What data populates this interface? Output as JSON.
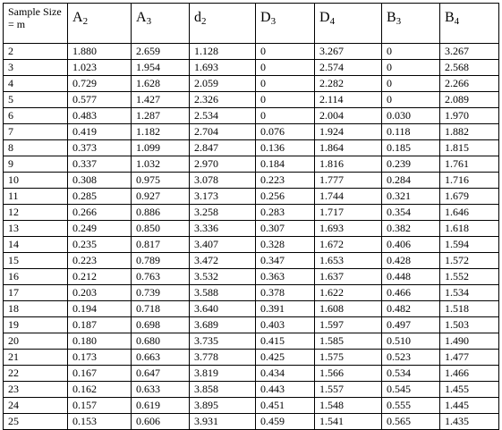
{
  "table": {
    "header": {
      "sample_size": "Sample Size = m",
      "columns": [
        {
          "base": "A",
          "sub": "2"
        },
        {
          "base": "A",
          "sub": "3"
        },
        {
          "base": "d",
          "sub": "2"
        },
        {
          "base": "D",
          "sub": "3"
        },
        {
          "base": "D",
          "sub": "4"
        },
        {
          "base": "B",
          "sub": "3"
        },
        {
          "base": "B",
          "sub": "4"
        }
      ]
    },
    "rows": [
      [
        "2",
        "1.880",
        "2.659",
        "1.128",
        "0",
        "3.267",
        "0",
        "3.267"
      ],
      [
        "3",
        "1.023",
        "1.954",
        "1.693",
        "0",
        "2.574",
        "0",
        "2.568"
      ],
      [
        "4",
        "0.729",
        "1.628",
        "2.059",
        "0",
        "2.282",
        "0",
        "2.266"
      ],
      [
        "5",
        "0.577",
        "1.427",
        "2.326",
        "0",
        "2.114",
        "0",
        "2.089"
      ],
      [
        "6",
        "0.483",
        "1.287",
        "2.534",
        "0",
        "2.004",
        "0.030",
        "1.970"
      ],
      [
        "7",
        "0.419",
        "1.182",
        "2.704",
        "0.076",
        "1.924",
        "0.118",
        "1.882"
      ],
      [
        "8",
        "0.373",
        "1.099",
        "2.847",
        "0.136",
        "1.864",
        "0.185",
        "1.815"
      ],
      [
        "9",
        "0.337",
        "1.032",
        "2.970",
        "0.184",
        "1.816",
        "0.239",
        "1.761"
      ],
      [
        "10",
        "0.308",
        "0.975",
        "3.078",
        "0.223",
        "1.777",
        "0.284",
        "1.716"
      ],
      [
        "11",
        "0.285",
        "0.927",
        "3.173",
        "0.256",
        "1.744",
        "0.321",
        "1.679"
      ],
      [
        "12",
        "0.266",
        "0.886",
        "3.258",
        "0.283",
        "1.717",
        "0.354",
        "1.646"
      ],
      [
        "13",
        "0.249",
        "0.850",
        "3.336",
        "0.307",
        "1.693",
        "0.382",
        "1.618"
      ],
      [
        "14",
        "0.235",
        "0.817",
        "3.407",
        "0.328",
        "1.672",
        "0.406",
        "1.594"
      ],
      [
        "15",
        "0.223",
        "0.789",
        "3.472",
        "0.347",
        "1.653",
        "0.428",
        "1.572"
      ],
      [
        "16",
        "0.212",
        "0.763",
        "3.532",
        "0.363",
        "1.637",
        "0.448",
        "1.552"
      ],
      [
        "17",
        "0.203",
        "0.739",
        "3.588",
        "0.378",
        "1.622",
        "0.466",
        "1.534"
      ],
      [
        "18",
        "0.194",
        "0.718",
        "3.640",
        "0.391",
        "1.608",
        "0.482",
        "1.518"
      ],
      [
        "19",
        "0.187",
        "0.698",
        "3.689",
        "0.403",
        "1.597",
        "0.497",
        "1.503"
      ],
      [
        "20",
        "0.180",
        "0.680",
        "3.735",
        "0.415",
        "1.585",
        "0.510",
        "1.490"
      ],
      [
        "21",
        "0.173",
        "0.663",
        "3.778",
        "0.425",
        "1.575",
        "0.523",
        "1.477"
      ],
      [
        "22",
        "0.167",
        "0.647",
        "3.819",
        "0.434",
        "1.566",
        "0.534",
        "1.466"
      ],
      [
        "23",
        "0.162",
        "0.633",
        "3.858",
        "0.443",
        "1.557",
        "0.545",
        "1.455"
      ],
      [
        "24",
        "0.157",
        "0.619",
        "3.895",
        "0.451",
        "1.548",
        "0.555",
        "1.445"
      ],
      [
        "25",
        "0.153",
        "0.606",
        "3.931",
        "0.459",
        "1.541",
        "0.565",
        "1.435"
      ]
    ]
  }
}
